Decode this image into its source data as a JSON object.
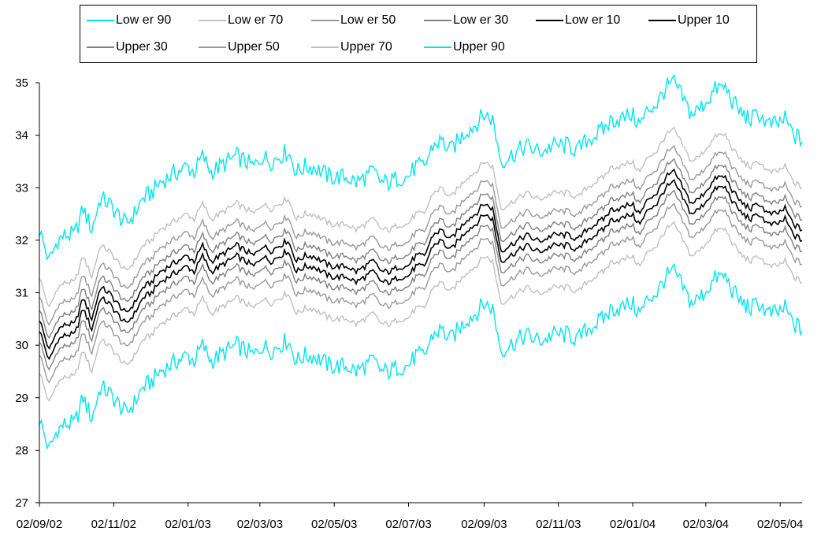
{
  "chart_data": {
    "type": "line",
    "title": "",
    "xlabel": "",
    "ylabel": "",
    "ylim": [
      27,
      35
    ],
    "yticks": [
      27,
      28,
      29,
      30,
      31,
      32,
      33,
      34,
      35
    ],
    "xlim": [
      "2002-09-02",
      "2004-05-20"
    ],
    "xticks": [
      {
        "date": "2002-09-02",
        "label": "02/09/02"
      },
      {
        "date": "2002-11-02",
        "label": "02/11/02"
      },
      {
        "date": "2003-01-02",
        "label": "02/01/03"
      },
      {
        "date": "2003-03-02",
        "label": "02/03/03"
      },
      {
        "date": "2003-05-02",
        "label": "02/05/03"
      },
      {
        "date": "2003-07-02",
        "label": "02/07/03"
      },
      {
        "date": "2003-09-02",
        "label": "02/09/03"
      },
      {
        "date": "2003-11-02",
        "label": "02/11/03"
      },
      {
        "date": "2004-01-02",
        "label": "02/01/04"
      },
      {
        "date": "2004-03-02",
        "label": "02/03/04"
      },
      {
        "date": "2004-05-02",
        "label": "02/05/04"
      }
    ],
    "grid": false,
    "legend_position": "top",
    "center": {
      "dates": [
        "2002-09-02",
        "2002-09-10",
        "2002-09-17",
        "2002-09-24",
        "2002-10-01",
        "2002-10-08",
        "2002-10-15",
        "2002-10-22",
        "2002-10-29",
        "2002-11-05",
        "2002-11-12",
        "2002-11-19",
        "2002-11-26",
        "2002-12-03",
        "2002-12-10",
        "2002-12-17",
        "2002-12-24",
        "2003-01-01",
        "2003-01-07",
        "2003-01-14",
        "2003-01-21",
        "2003-01-28",
        "2003-02-04",
        "2003-02-11",
        "2003-02-18",
        "2003-02-25",
        "2003-03-04",
        "2003-03-11",
        "2003-03-18",
        "2003-03-25",
        "2003-04-01",
        "2003-04-08",
        "2003-04-15",
        "2003-04-22",
        "2003-04-29",
        "2003-05-06",
        "2003-05-13",
        "2003-05-20",
        "2003-05-27",
        "2003-06-03",
        "2003-06-10",
        "2003-06-17",
        "2003-06-24",
        "2003-07-01",
        "2003-07-08",
        "2003-07-15",
        "2003-07-22",
        "2003-07-29",
        "2003-08-05",
        "2003-08-12",
        "2003-08-19",
        "2003-08-26",
        "2003-09-02",
        "2003-09-09",
        "2003-09-16",
        "2003-09-23",
        "2003-09-30",
        "2003-10-07",
        "2003-10-14",
        "2003-10-21",
        "2003-10-28",
        "2003-11-04",
        "2003-11-11",
        "2003-11-18",
        "2003-11-25",
        "2003-12-02",
        "2003-12-09",
        "2003-12-16",
        "2003-12-23",
        "2004-01-01",
        "2004-01-08",
        "2004-01-15",
        "2004-01-22",
        "2004-01-29",
        "2004-02-05",
        "2004-02-12",
        "2004-02-19",
        "2004-02-26",
        "2004-03-04",
        "2004-03-11",
        "2004-03-18",
        "2004-03-25",
        "2004-04-01",
        "2004-04-08",
        "2004-04-15",
        "2004-04-22",
        "2004-04-29",
        "2004-05-06",
        "2004-05-13",
        "2004-05-20"
      ],
      "values": [
        30.4,
        29.8,
        30.2,
        30.3,
        30.3,
        30.8,
        30.4,
        31.0,
        30.9,
        30.7,
        30.5,
        30.7,
        31.0,
        31.1,
        31.3,
        31.4,
        31.5,
        31.6,
        31.5,
        31.8,
        31.5,
        31.6,
        31.7,
        31.8,
        31.7,
        31.6,
        31.8,
        31.7,
        31.8,
        31.9,
        31.5,
        31.6,
        31.6,
        31.5,
        31.4,
        31.4,
        31.4,
        31.3,
        31.4,
        31.5,
        31.3,
        31.3,
        31.4,
        31.4,
        31.6,
        31.6,
        32.0,
        32.1,
        31.9,
        32.1,
        32.3,
        32.4,
        32.6,
        32.5,
        31.7,
        31.8,
        31.9,
        32.0,
        31.9,
        31.9,
        32.0,
        32.0,
        32.0,
        31.9,
        32.1,
        32.2,
        32.3,
        32.5,
        32.5,
        32.6,
        32.4,
        32.7,
        32.8,
        33.1,
        33.2,
        32.9,
        32.6,
        32.7,
        32.9,
        33.1,
        33.1,
        32.8,
        32.6,
        32.5,
        32.6,
        32.4,
        32.4,
        32.5,
        32.2,
        32.1
      ]
    },
    "series": [
      {
        "name": "Low er 90",
        "offset": -1.8,
        "color": "#00e5ee"
      },
      {
        "name": "Low er 70",
        "offset": -0.9,
        "color": "#c0c0c0"
      },
      {
        "name": "Low er 50",
        "offset": -0.55,
        "color": "#9a9a9a"
      },
      {
        "name": "Low er 30",
        "offset": -0.3,
        "color": "#808080"
      },
      {
        "name": "Low er 10",
        "offset": -0.1,
        "color": "#000000"
      },
      {
        "name": "Upper 10",
        "offset": 0.1,
        "color": "#000000"
      },
      {
        "name": "Upper 30",
        "offset": 0.3,
        "color": "#808080"
      },
      {
        "name": "Upper 50",
        "offset": 0.55,
        "color": "#9a9a9a"
      },
      {
        "name": "Upper 70",
        "offset": 0.9,
        "color": "#c0c0c0"
      },
      {
        "name": "Upper 90",
        "offset": 1.8,
        "color": "#00e5ee"
      }
    ]
  }
}
